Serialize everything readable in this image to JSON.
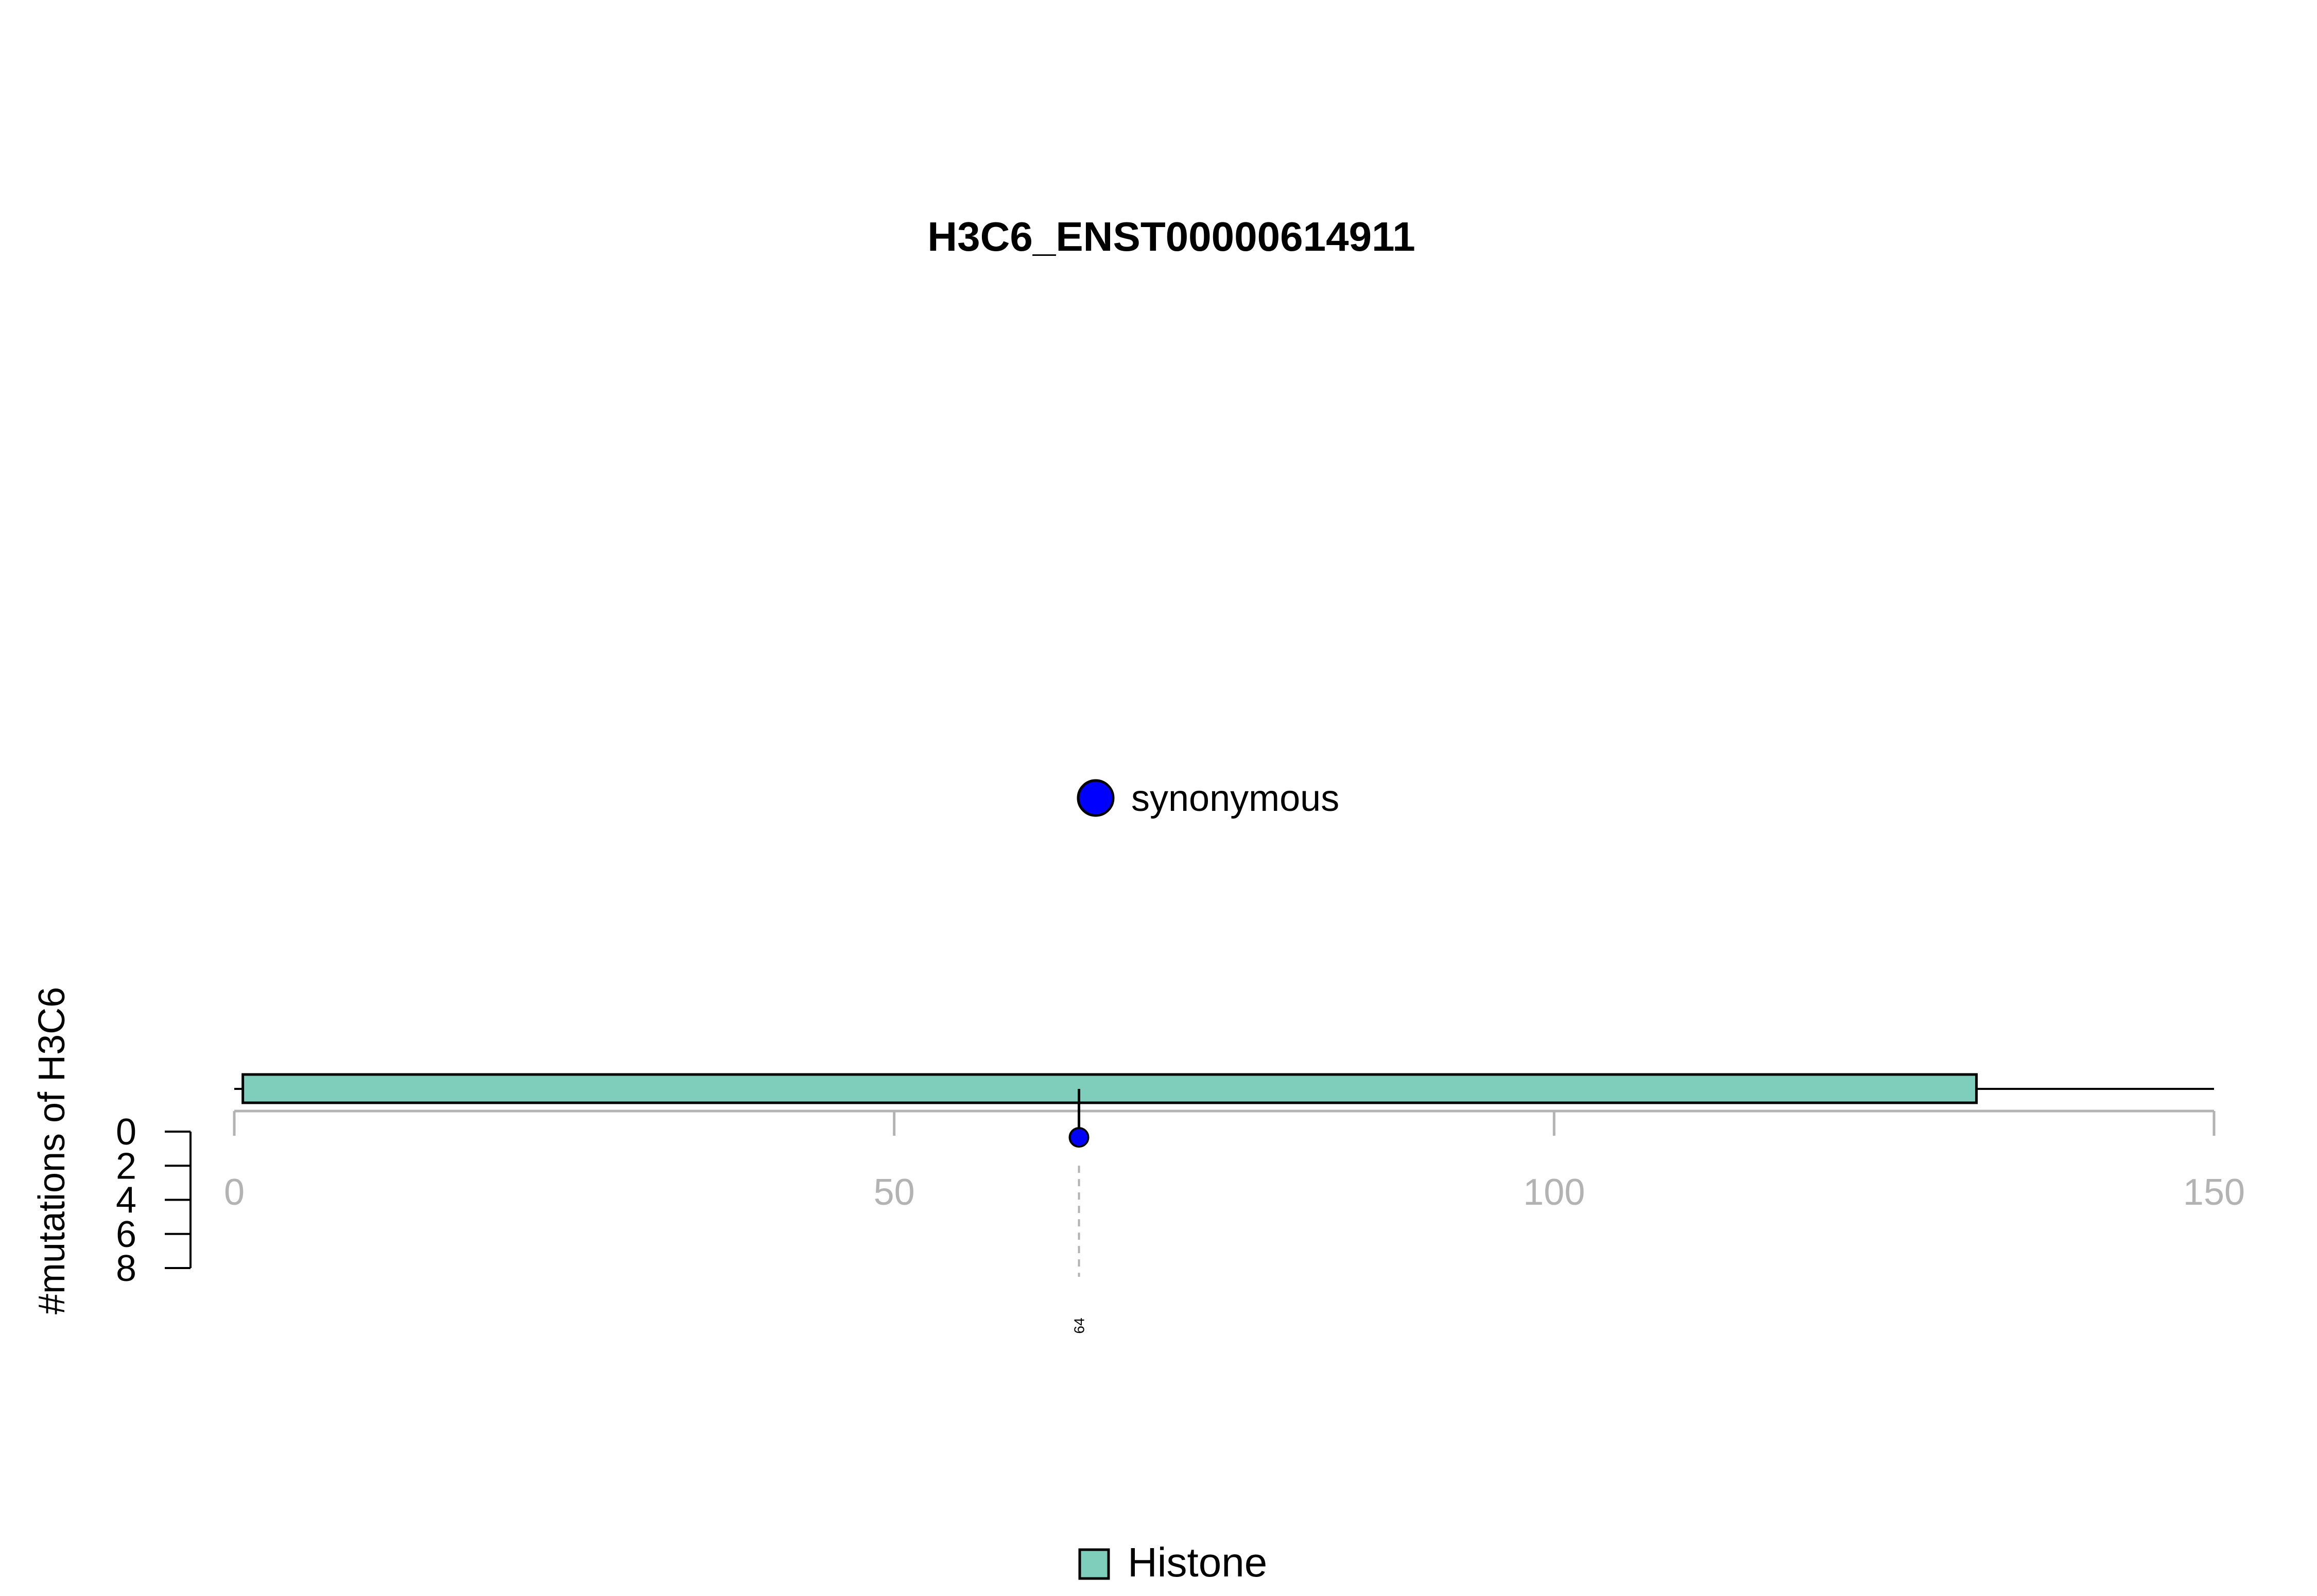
{
  "chart_data": {
    "type": "lollipop",
    "title": "H3C6_ENST00000614911",
    "ylabel": "#mutations of H3C6",
    "protein_length": 150,
    "x_ticks": [
      0,
      50,
      100,
      150
    ],
    "x_tick_labels": [
      "0",
      "50",
      "100",
      "150"
    ],
    "y_ticks": [
      0,
      2,
      4,
      6,
      8
    ],
    "y_tick_labels": [
      "0",
      "2",
      "4",
      "6",
      "8"
    ],
    "ylim": [
      0,
      8
    ],
    "domains": [
      {
        "name": "Histone",
        "start": 1,
        "end": 132,
        "color": "#7fcdbb"
      }
    ],
    "mutations": [
      {
        "position": 64,
        "count": 1,
        "type": "synonymous",
        "label": "64",
        "color": "#0000ff"
      }
    ],
    "mutation_legend": [
      {
        "label": "synonymous",
        "color": "#0000ff"
      }
    ],
    "domain_legend": [
      {
        "label": "Histone",
        "color": "#7fcdbb"
      }
    ]
  }
}
